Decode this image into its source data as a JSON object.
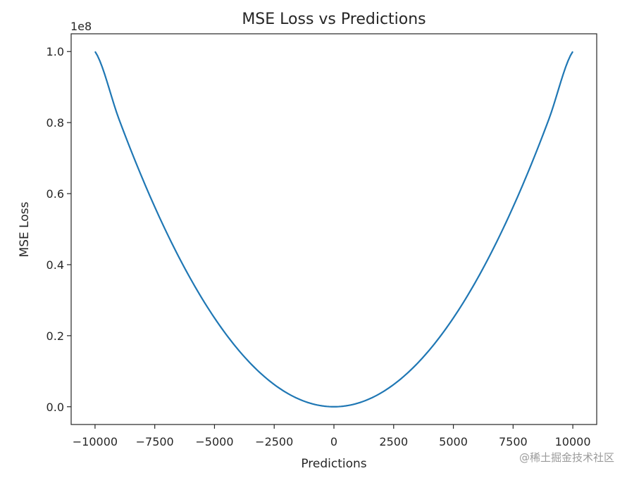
{
  "chart_data": {
    "type": "line",
    "title": "MSE Loss vs Predictions",
    "xlabel": "Predictions",
    "ylabel": "MSE Loss",
    "offset_text": "1e8",
    "xlim": [
      -11000,
      11000
    ],
    "ylim": [
      -0.05,
      1.05
    ],
    "xticks": [
      -10000,
      -7500,
      -5000,
      -2500,
      0,
      2500,
      5000,
      7500,
      10000
    ],
    "xtick_labels": [
      "−10000",
      "−7500",
      "−5000",
      "−2500",
      "0",
      "2500",
      "5000",
      "7500",
      "10000"
    ],
    "yticks": [
      0.0,
      0.2,
      0.4,
      0.6,
      0.8,
      1.0
    ],
    "ytick_labels": [
      "0.0",
      "0.2",
      "0.4",
      "0.6",
      "0.8",
      "1.0"
    ],
    "series": [
      {
        "name": "MSE Loss",
        "color": "#1f77b4",
        "x": [
          -10000,
          -9000,
          -8000,
          -7000,
          -6000,
          -5000,
          -4000,
          -3000,
          -2000,
          -1000,
          0,
          1000,
          2000,
          3000,
          4000,
          5000,
          6000,
          7000,
          8000,
          9000,
          10000
        ],
        "y": [
          1.0,
          0.81,
          0.64,
          0.49,
          0.36,
          0.25,
          0.16,
          0.09,
          0.04,
          0.01,
          0.0,
          0.01,
          0.04,
          0.09,
          0.16,
          0.25,
          0.36,
          0.49,
          0.64,
          0.81,
          1.0
        ]
      }
    ],
    "grid": false
  },
  "watermark": "@稀土掘金技术社区"
}
